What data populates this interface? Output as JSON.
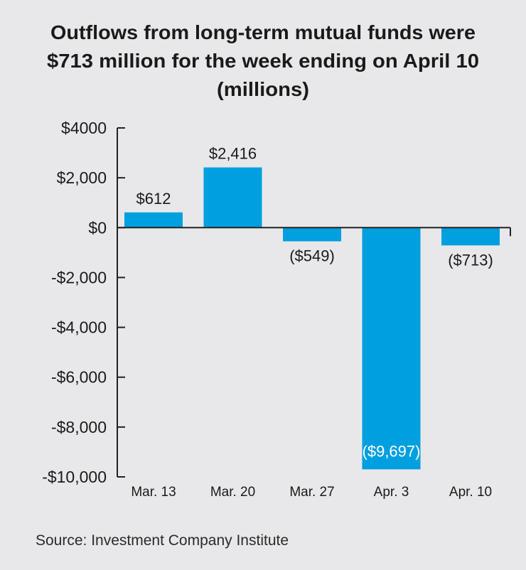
{
  "chart_data": {
    "type": "bar",
    "title_lines": [
      "Outflows from long-term mutual funds were",
      "$713 million for the week ending on April 10",
      "(millions)"
    ],
    "categories": [
      "Mar. 13",
      "Mar. 20",
      "Mar. 27",
      "Apr. 3",
      "Apr. 10"
    ],
    "values": [
      612,
      2416,
      -549,
      -9697,
      -713
    ],
    "data_labels": [
      "$612",
      "$2,416",
      "($549)",
      "($9,697)",
      "($713)"
    ],
    "y_ticks": [
      4000,
      2000,
      0,
      -2000,
      -4000,
      -6000,
      -8000,
      -10000
    ],
    "y_tick_labels": [
      "$4000",
      "$2,000",
      "$0",
      "-$2,000",
      "-$4,000",
      "-$6,000",
      "-$8,000",
      "-$10,000"
    ],
    "ylim": [
      -10000,
      4000
    ],
    "xlabel": "",
    "ylabel": "",
    "grid": false,
    "bar_color": "#009fe0",
    "source": "Source: Investment Company Institute"
  }
}
